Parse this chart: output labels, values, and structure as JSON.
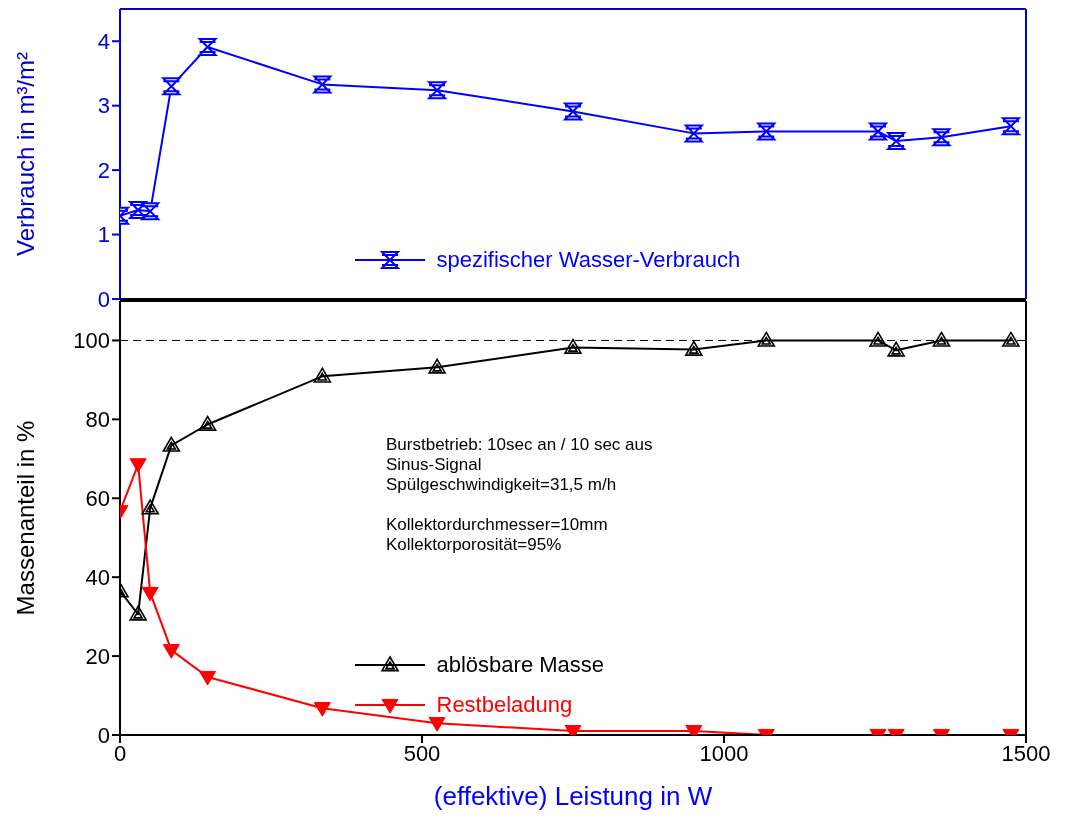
{
  "chart_data": [
    {
      "type": "line",
      "x": [
        0,
        30,
        50,
        85,
        145,
        335,
        525,
        750,
        950,
        1070,
        1255,
        1285,
        1360,
        1475
      ],
      "xlim": [
        0,
        1500
      ],
      "ylim": [
        0,
        4.5
      ],
      "yticks": [
        0,
        1,
        2,
        3,
        4
      ],
      "ylabel": "Verbrauch in m³/m²",
      "tick_labels": "y",
      "legend": "bottom",
      "grid": false,
      "series": [
        {
          "name": "spezifischer Wasser-Verbrauch",
          "color": "#0000ff",
          "marker": "cross",
          "values": [
            1.29,
            1.38,
            1.36,
            3.3,
            3.91,
            3.33,
            3.24,
            2.91,
            2.57,
            2.6,
            2.6,
            2.45,
            2.51,
            2.68
          ]
        }
      ]
    },
    {
      "type": "line",
      "x": [
        0,
        30,
        50,
        85,
        145,
        335,
        525,
        750,
        950,
        1070,
        1255,
        1285,
        1360,
        1475
      ],
      "xlim": [
        0,
        1500
      ],
      "xticks": [
        0,
        500,
        1000,
        1500
      ],
      "ylim": [
        0,
        110
      ],
      "yticks": [
        0,
        20,
        40,
        60,
        80,
        100
      ],
      "xlabel": "(effektive) Leistung in W",
      "ylabel": "Massenanteil in %",
      "legend": "bottom",
      "grid": false,
      "ref_lines": [
        {
          "axis": "y",
          "value": 100,
          "color": "#000000",
          "line_style": "dashed"
        }
      ],
      "annotations": [
        "Burstbetrieb: 10sec an / 10 sec aus\nSinus-Signal\nSpülgeschwindigkeit=31,5 m/h",
        "Kollektordurchmesser=10mm\nKollektorporosität=95%"
      ],
      "series": [
        {
          "name": "ablösbare Masse",
          "color": "#000000",
          "marker": "triangle",
          "values": [
            36.5,
            30.6,
            57.5,
            73.4,
            78.7,
            90.9,
            93.2,
            98.2,
            97.7,
            100,
            100,
            97.5,
            100,
            100
          ]
        },
        {
          "name": "Restbeladung",
          "color": "#ff0000",
          "marker": "triangle-down",
          "values": [
            56.7,
            68.6,
            36,
            21.5,
            14.7,
            6.8,
            3,
            1,
            1,
            0,
            0,
            0,
            0,
            0
          ]
        }
      ]
    }
  ]
}
